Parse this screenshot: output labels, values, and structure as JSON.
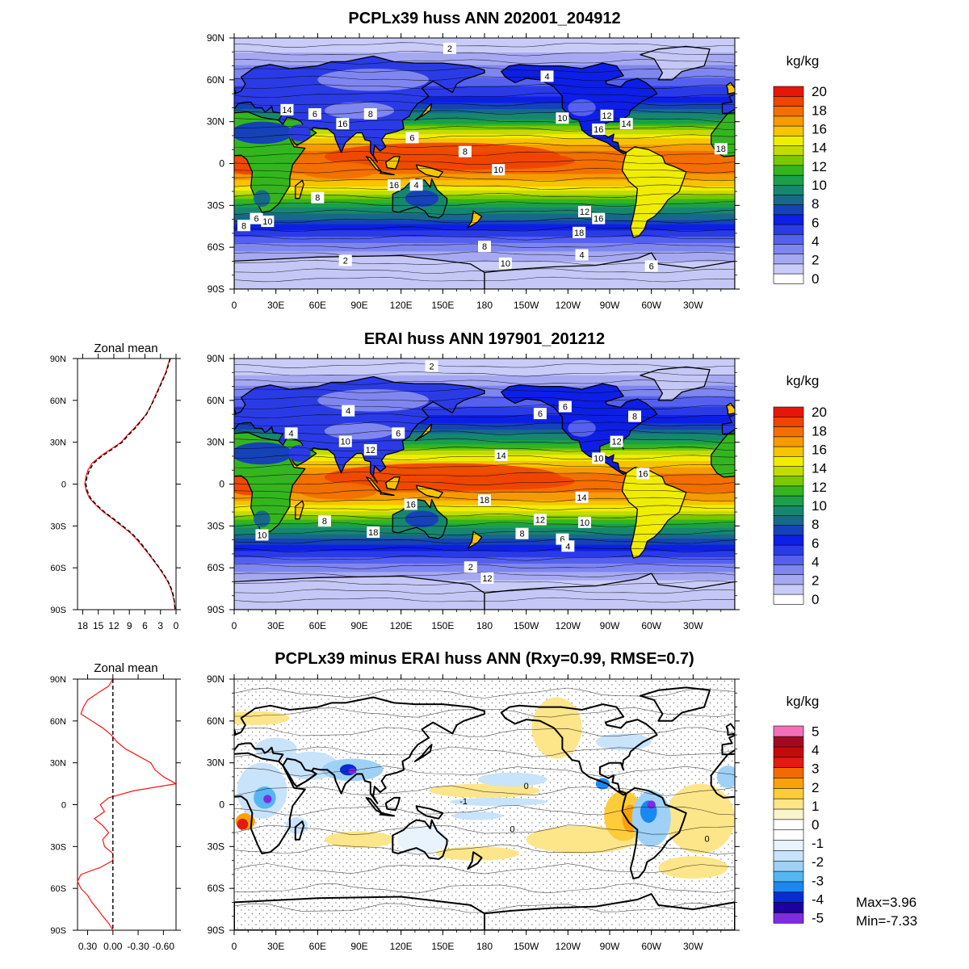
{
  "panels": {
    "top": {
      "title": "PCPLx39 huss ANN 202001_204912",
      "unit": "kg/kg",
      "colorbar_labels": [
        "20",
        "18",
        "16",
        "14",
        "12",
        "10",
        "8",
        "6",
        "4",
        "2",
        "0"
      ],
      "contour_labels": [
        "2",
        "4",
        "6",
        "8",
        "10",
        "12",
        "14",
        "16",
        "18",
        "14",
        "16",
        "6",
        "8",
        "10",
        "16",
        "4",
        "8",
        "6",
        "10",
        "8",
        "12",
        "16",
        "18",
        "8",
        "10",
        "6",
        "4",
        "2"
      ]
    },
    "middle": {
      "title": "ERAI huss ANN 197901_201212",
      "unit": "kg/kg",
      "colorbar_labels": [
        "20",
        "18",
        "16",
        "14",
        "12",
        "10",
        "8",
        "6",
        "4",
        "2",
        "0"
      ],
      "contour_labels": [
        "2",
        "4",
        "6",
        "6",
        "4",
        "10",
        "12",
        "6",
        "14",
        "10",
        "12",
        "8",
        "16",
        "18",
        "14",
        "12",
        "10",
        "8",
        "6",
        "4",
        "2",
        "12",
        "8",
        "18",
        "16",
        "10"
      ]
    },
    "bottom": {
      "title": "PCPLx39 minus ERAI huss ANN (Rxy=0.99, RMSE=0.7)",
      "unit": "kg/kg",
      "colorbar_labels": [
        "5",
        "4",
        "3",
        "2",
        "1",
        "0",
        "-1",
        "-2",
        "-3",
        "-4",
        "-5"
      ],
      "contour_labels": [
        "0",
        "0",
        "-1",
        "0"
      ],
      "max_label": "Max=3.96",
      "min_label": "Min=-7.33"
    }
  },
  "map_axis": {
    "lat_ticks": [
      "90N",
      "60N",
      "30N",
      "0",
      "30S",
      "60S",
      "90S"
    ],
    "lon_ticks": [
      "0",
      "30E",
      "60E",
      "90E",
      "120E",
      "150E",
      "180",
      "150W",
      "120W",
      "90W",
      "60W",
      "30W"
    ]
  },
  "zonal_mean": {
    "title": "Zonal mean",
    "lat_ticks": [
      "90N",
      "60N",
      "30N",
      "0",
      "30S",
      "60S",
      "90S"
    ],
    "middle_x_ticks": [
      "18",
      "15",
      "12",
      "9",
      "6",
      "3",
      "0"
    ],
    "bottom_x_ticks": [
      "0.30",
      "0.00",
      "-0.30",
      "-0.60"
    ]
  },
  "colors": {
    "huss_scale": [
      "#ffffff",
      "#c9ccf8",
      "#a6a9f2",
      "#7f86ef",
      "#5561ee",
      "#2a3be6",
      "#0d1fe6",
      "#1542b8",
      "#17698a",
      "#16876e",
      "#1c9f4a",
      "#34b51f",
      "#79c800",
      "#c3dc00",
      "#f1ed00",
      "#f6c400",
      "#f59b00",
      "#f26f00",
      "#ee4500",
      "#e8150a"
    ],
    "diff_scale": [
      "#7e2ce0",
      "#1e00a0",
      "#0a2bd0",
      "#1a88f0",
      "#55b6f2",
      "#9ed1f5",
      "#c8e3fa",
      "#e8f3fd",
      "#ffffff",
      "#ffffff",
      "#fbf5cc",
      "#fde58a",
      "#fdcc3a",
      "#f9a10b",
      "#f26b00",
      "#e31a0f",
      "#c40b0b",
      "#a30a22",
      "#f370b8"
    ],
    "ocean_tropics": "#f27c00",
    "polar": "#c5c8f6",
    "land_outline": "#000000",
    "zonal_model_line": "#ff0000",
    "zonal_obs_line": "#000000"
  },
  "chart_data": [
    {
      "type": "heatmap",
      "title": "PCPLx39 huss ANN 202001_204912",
      "variable": "huss",
      "unit": "kg/kg",
      "lat_range": [
        -90,
        90
      ],
      "lon_range": [
        0,
        360
      ],
      "color_levels": [
        0,
        1,
        2,
        3,
        4,
        5,
        6,
        7,
        8,
        9,
        10,
        11,
        12,
        13,
        14,
        15,
        16,
        17,
        18,
        19,
        20
      ],
      "zonal_profile_lat": [
        90,
        75,
        60,
        45,
        30,
        20,
        10,
        5,
        0,
        -5,
        -10,
        -20,
        -30,
        -45,
        -60,
        -75,
        -90
      ],
      "zonal_profile_values": [
        1.0,
        2.4,
        4.2,
        6.5,
        10.5,
        14.5,
        16.8,
        17.5,
        17.6,
        17.3,
        16.6,
        14.0,
        10.5,
        6.8,
        3.5,
        1.2,
        0.3
      ]
    },
    {
      "type": "heatmap",
      "title": "ERAI huss ANN 197901_201212",
      "variable": "huss",
      "unit": "kg/kg",
      "lat_range": [
        -90,
        90
      ],
      "lon_range": [
        0,
        360
      ],
      "color_levels": [
        0,
        1,
        2,
        3,
        4,
        5,
        6,
        7,
        8,
        9,
        10,
        11,
        12,
        13,
        14,
        15,
        16,
        17,
        18,
        19,
        20
      ],
      "zonal_profile_lat": [
        90,
        75,
        60,
        45,
        30,
        20,
        10,
        5,
        0,
        -5,
        -10,
        -20,
        -30,
        -45,
        -60,
        -75,
        -90
      ],
      "zonal_profile_values": [
        1.0,
        2.3,
        4.3,
        6.6,
        10.4,
        14.3,
        16.6,
        17.4,
        17.5,
        17.1,
        16.5,
        13.8,
        10.3,
        6.6,
        3.4,
        1.1,
        0.3
      ]
    },
    {
      "type": "heatmap",
      "title": "PCPLx39 minus ERAI huss ANN (Rxy=0.99, RMSE=0.7)",
      "variable": "huss difference",
      "unit": "kg/kg",
      "lat_range": [
        -90,
        90
      ],
      "lon_range": [
        0,
        360
      ],
      "color_levels": [
        -5,
        -4.5,
        -4,
        -3.5,
        -3,
        -2.5,
        -2,
        -1.5,
        -1,
        -0.5,
        0,
        0.5,
        1,
        1.5,
        2,
        2.5,
        3,
        3.5,
        4,
        4.5,
        5
      ],
      "max": 3.96,
      "min": -7.33,
      "rxy": 0.99,
      "rmse": 0.7
    },
    {
      "type": "line",
      "title": "Zonal mean",
      "x_axis_reversed": true,
      "xlim": [
        19,
        0
      ],
      "ylim": [
        -90,
        90
      ],
      "series": [
        {
          "y": [
            90,
            85,
            80,
            75,
            70,
            65,
            60,
            55,
            50,
            45,
            40,
            35,
            30,
            25,
            20,
            15,
            10,
            5,
            0,
            -5,
            -10,
            -15,
            -20,
            -25,
            -30,
            -35,
            -40,
            -45,
            -50,
            -55,
            -60,
            -65,
            -70,
            -75,
            -80,
            -85,
            -90
          ],
          "x": [
            1.2,
            1.6,
            2.0,
            2.6,
            3.2,
            3.8,
            4.4,
            5.0,
            5.8,
            6.9,
            8.1,
            9.4,
            10.6,
            12.6,
            14.6,
            16.2,
            17.0,
            17.4,
            17.6,
            17.3,
            16.7,
            15.5,
            14.0,
            12.2,
            10.5,
            8.8,
            7.5,
            6.4,
            5.3,
            4.3,
            3.3,
            2.4,
            1.6,
            1.0,
            0.6,
            0.3,
            0.2
          ]
        },
        {
          "y": [
            90,
            85,
            80,
            75,
            70,
            65,
            60,
            55,
            50,
            45,
            40,
            35,
            30,
            25,
            20,
            15,
            10,
            5,
            0,
            -5,
            -10,
            -15,
            -20,
            -25,
            -30,
            -35,
            -40,
            -45,
            -50,
            -55,
            -60,
            -65,
            -70,
            -75,
            -80,
            -85,
            -90
          ],
          "x": [
            1.1,
            1.5,
            1.9,
            2.5,
            3.1,
            3.7,
            4.3,
            5.0,
            5.7,
            6.8,
            7.9,
            9.2,
            10.4,
            12.3,
            14.3,
            15.9,
            16.7,
            17.2,
            17.4,
            17.1,
            16.5,
            15.3,
            13.8,
            12.0,
            10.3,
            8.6,
            7.3,
            6.2,
            5.2,
            4.2,
            3.2,
            2.3,
            1.5,
            0.9,
            0.5,
            0.3,
            0.2
          ]
        }
      ]
    },
    {
      "type": "line",
      "title": "Zonal mean",
      "x_axis_reversed": true,
      "xlim": [
        0.42,
        -0.75
      ],
      "ylim": [
        -90,
        90
      ],
      "series": [
        {
          "y": [
            90,
            85,
            80,
            75,
            70,
            65,
            60,
            55,
            50,
            45,
            40,
            35,
            30,
            25,
            20,
            15,
            10,
            5,
            0,
            -5,
            -10,
            -15,
            -20,
            -25,
            -30,
            -35,
            -40,
            -45,
            -50,
            -55,
            -60,
            -65,
            -70,
            -75,
            -80,
            -85,
            -90
          ],
          "x": [
            0.0,
            0.05,
            0.18,
            0.3,
            0.35,
            0.38,
            0.25,
            0.12,
            0.02,
            -0.05,
            -0.15,
            -0.3,
            -0.45,
            -0.5,
            -0.6,
            -0.75,
            -0.25,
            0.05,
            0.15,
            0.1,
            0.22,
            0.12,
            0.05,
            0.12,
            0.1,
            0.0,
            0.0,
            0.15,
            0.38,
            0.42,
            0.38,
            0.3,
            0.25,
            0.18,
            0.12,
            0.05,
            0.0
          ]
        },
        {
          "y": [
            90,
            -90
          ],
          "x": [
            0.0,
            0.0
          ]
        }
      ]
    }
  ]
}
